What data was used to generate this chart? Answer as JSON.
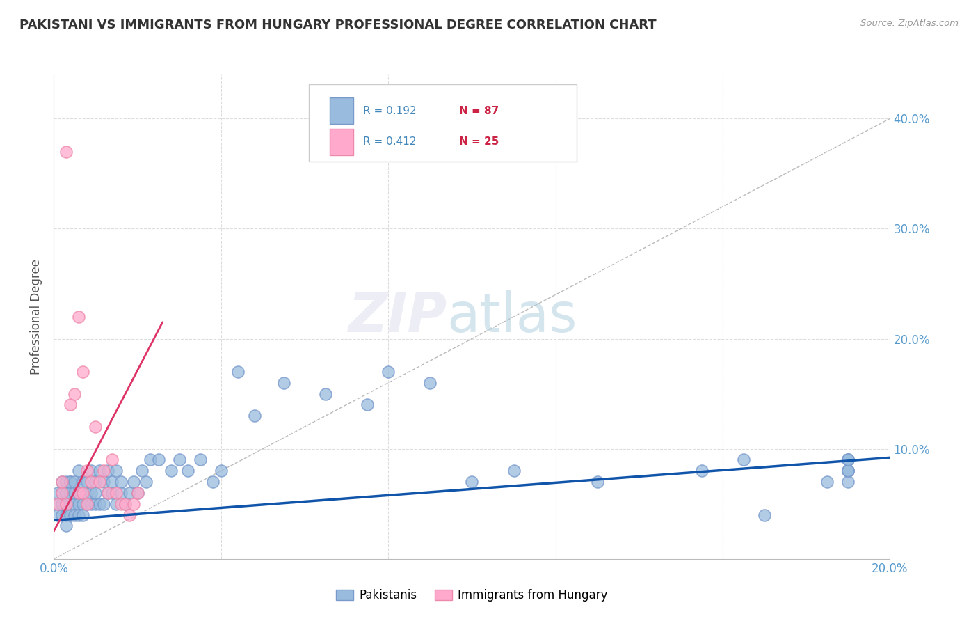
{
  "title": "PAKISTANI VS IMMIGRANTS FROM HUNGARY PROFESSIONAL DEGREE CORRELATION CHART",
  "source": "Source: ZipAtlas.com",
  "ylabel": "Professional Degree",
  "xlim": [
    0.0,
    0.2
  ],
  "ylim": [
    0.0,
    0.44
  ],
  "xticks": [
    0.0,
    0.04,
    0.08,
    0.12,
    0.16,
    0.2
  ],
  "yticks": [
    0.0,
    0.1,
    0.2,
    0.3,
    0.4
  ],
  "xticklabels_show": [
    "0.0%",
    "",
    "",
    "",
    "",
    "20.0%"
  ],
  "yticklabels_right": [
    "40.0%",
    "30.0%",
    "20.0%",
    "10.0%"
  ],
  "legend_r1": "R = 0.192",
  "legend_n1": "N = 87",
  "legend_r2": "R = 0.412",
  "legend_n2": "N = 25",
  "blue_scatter_color": "#99BBDD",
  "blue_scatter_edge": "#7799CC",
  "pink_scatter_color": "#FFAACC",
  "pink_scatter_edge": "#EE88AA",
  "blue_line_color": "#1155AA",
  "pink_line_color": "#DD3366",
  "diagonal_color": "#BBBBBB",
  "watermark_zip": "ZIP",
  "watermark_atlas": "atlas",
  "blue_line_x": [
    0.0,
    0.2
  ],
  "blue_line_y": [
    0.035,
    0.092
  ],
  "pink_line_x": [
    0.0,
    0.026
  ],
  "pink_line_y": [
    0.025,
    0.215
  ],
  "pak_x": [
    0.001,
    0.001,
    0.001,
    0.002,
    0.002,
    0.002,
    0.002,
    0.002,
    0.003,
    0.003,
    0.003,
    0.003,
    0.003,
    0.003,
    0.004,
    0.004,
    0.004,
    0.004,
    0.004,
    0.005,
    0.005,
    0.005,
    0.005,
    0.006,
    0.006,
    0.006,
    0.006,
    0.007,
    0.007,
    0.007,
    0.007,
    0.008,
    0.008,
    0.008,
    0.009,
    0.009,
    0.009,
    0.01,
    0.01,
    0.01,
    0.011,
    0.011,
    0.012,
    0.012,
    0.013,
    0.013,
    0.014,
    0.014,
    0.015,
    0.015,
    0.016,
    0.016,
    0.017,
    0.018,
    0.019,
    0.02,
    0.021,
    0.022,
    0.023,
    0.025,
    0.028,
    0.03,
    0.032,
    0.035,
    0.038,
    0.04,
    0.044,
    0.048,
    0.055,
    0.065,
    0.075,
    0.08,
    0.09,
    0.1,
    0.11,
    0.13,
    0.155,
    0.165,
    0.17,
    0.185,
    0.19,
    0.19,
    0.19,
    0.19,
    0.19,
    0.19,
    0.19
  ],
  "pak_y": [
    0.05,
    0.06,
    0.04,
    0.05,
    0.06,
    0.07,
    0.04,
    0.05,
    0.06,
    0.07,
    0.04,
    0.05,
    0.06,
    0.03,
    0.07,
    0.05,
    0.06,
    0.04,
    0.07,
    0.06,
    0.05,
    0.07,
    0.04,
    0.08,
    0.05,
    0.06,
    0.04,
    0.07,
    0.05,
    0.06,
    0.04,
    0.06,
    0.05,
    0.07,
    0.06,
    0.05,
    0.08,
    0.07,
    0.05,
    0.06,
    0.08,
    0.05,
    0.07,
    0.05,
    0.06,
    0.08,
    0.06,
    0.07,
    0.05,
    0.08,
    0.06,
    0.07,
    0.05,
    0.06,
    0.07,
    0.06,
    0.08,
    0.07,
    0.09,
    0.09,
    0.08,
    0.09,
    0.08,
    0.09,
    0.07,
    0.08,
    0.17,
    0.13,
    0.16,
    0.15,
    0.14,
    0.17,
    0.16,
    0.07,
    0.08,
    0.07,
    0.08,
    0.09,
    0.04,
    0.07,
    0.08,
    0.09,
    0.08,
    0.07,
    0.09,
    0.08,
    0.09
  ],
  "hun_x": [
    0.001,
    0.002,
    0.002,
    0.003,
    0.003,
    0.004,
    0.005,
    0.006,
    0.006,
    0.007,
    0.007,
    0.008,
    0.008,
    0.009,
    0.01,
    0.011,
    0.012,
    0.013,
    0.014,
    0.015,
    0.016,
    0.017,
    0.018,
    0.019,
    0.02
  ],
  "hun_y": [
    0.05,
    0.06,
    0.07,
    0.37,
    0.05,
    0.14,
    0.15,
    0.22,
    0.06,
    0.17,
    0.06,
    0.08,
    0.05,
    0.07,
    0.12,
    0.07,
    0.08,
    0.06,
    0.09,
    0.06,
    0.05,
    0.05,
    0.04,
    0.05,
    0.06
  ]
}
